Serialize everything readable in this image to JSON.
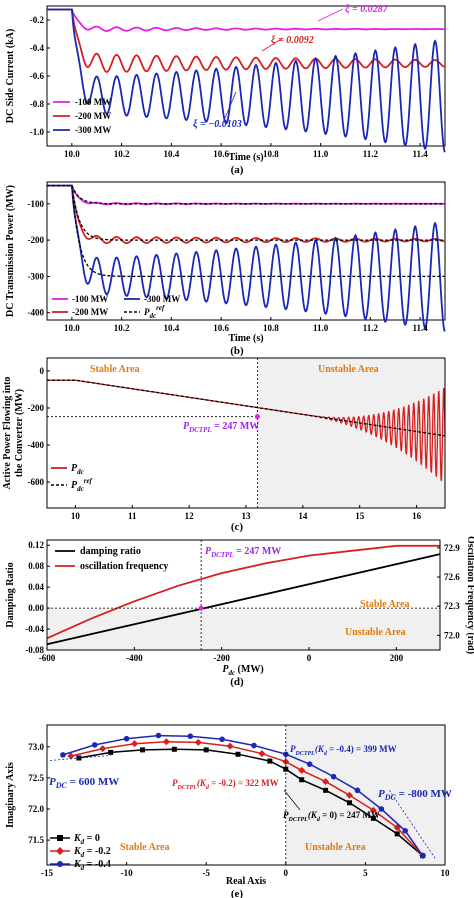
{
  "chart_data": [
    {
      "panel": "a",
      "type": "line",
      "caption": "(a)",
      "xlabel": "Time (s)",
      "ylabel": "DC Side Current (kA)",
      "xlim": [
        9.9,
        11.5
      ],
      "ylim": [
        -1.1,
        -0.1
      ],
      "xticks": [
        "10.0",
        "10.2",
        "10.4",
        "10.6",
        "10.8",
        "11.0",
        "11.2",
        "11.4"
      ],
      "yticks": [
        "-0.2",
        "-0.4",
        "-0.6",
        "-0.8",
        "-1.0"
      ],
      "legend_position": "bottom-left",
      "annotations": [
        "ξ = 0.0287",
        "ξ = 0.0092",
        "ξ = −0.0103"
      ],
      "series": [
        {
          "name": "-100 MW",
          "color": "#e61ee6",
          "t0": 10.0,
          "y0": -0.125,
          "y_final": -0.265,
          "osc_amplitude": 0.02,
          "osc_period": 0.08,
          "damping": 0.0287
        },
        {
          "name": "-200 MW",
          "color": "#d62020",
          "t0": 10.0,
          "y0": -0.125,
          "y_final": -0.51,
          "osc_amplitude": 0.07,
          "osc_period": 0.08,
          "damping": 0.0092
        },
        {
          "name": "-300 MW",
          "color": "#1a28b4",
          "t0": 10.0,
          "y0": -0.125,
          "y_final": -0.74,
          "osc_amplitude": 0.12,
          "osc_period": 0.08,
          "damping": -0.0103
        }
      ]
    },
    {
      "panel": "b",
      "type": "line",
      "caption": "(b)",
      "xlabel": "Time (s)",
      "ylabel": "DC Transmission Power (MW)",
      "xlim": [
        9.9,
        11.5
      ],
      "ylim": [
        -420,
        -40
      ],
      "xticks": [
        "10.0",
        "10.2",
        "10.4",
        "10.6",
        "10.8",
        "11.0",
        "11.2",
        "11.4"
      ],
      "yticks": [
        "-100",
        "-200",
        "-300",
        "-400"
      ],
      "legend_position": "bottom-left",
      "series": [
        {
          "name": "-100 MW",
          "color": "#e61ee6",
          "t0": 10.0,
          "y0": -50,
          "y_final": -100,
          "osc_amplitude": 3,
          "damping": 0.0287
        },
        {
          "name": "-200 MW",
          "color": "#d62020",
          "t0": 10.0,
          "y0": -50,
          "y_final": -200,
          "osc_amplitude": 10,
          "damping": 0.0092
        },
        {
          "name": "-300 MW",
          "color": "#1a28b4",
          "t0": 10.0,
          "y0": -50,
          "y_final": -300,
          "osc_amplitude": 45,
          "damping": -0.0103
        },
        {
          "name_main": "P",
          "name_sub": "dc",
          "name_sup": "ref",
          "color": "#000000",
          "dashed": true,
          "steps": [
            -50,
            -100,
            -200,
            -300
          ]
        }
      ]
    },
    {
      "panel": "c",
      "type": "line",
      "caption": "(c)",
      "ylabel_lines": [
        "Active Power Flowing into",
        "the Converter (MW)"
      ],
      "xlim": [
        9.5,
        16.5
      ],
      "ylim": [
        -740,
        70
      ],
      "xticks": [
        "10",
        "11",
        "12",
        "13",
        "14",
        "15",
        "16"
      ],
      "yticks": [
        "0",
        "-200",
        "-400",
        "-600"
      ],
      "area_labels": [
        "Stable Area",
        "Unstable Area"
      ],
      "unstable_region_start": 13.2,
      "threshold_annotation": {
        "main": "P",
        "sub": "DCTPL",
        "rest": " = 247 MW",
        "x": 13.2,
        "y": -247
      },
      "legend_position": "bottom-left",
      "series": [
        {
          "name_main": "P",
          "name_sub": "dc",
          "color": "#d62020",
          "ramp_from": [
            10.0,
            -50
          ],
          "ramp_to": [
            16.5,
            -350
          ],
          "osc_onset": 14.0,
          "osc_max_amplitude": 260
        },
        {
          "name_main": "P",
          "name_sub": "dc",
          "name_sup": "ref",
          "color": "#000000",
          "dashed": true,
          "from": [
            9.5,
            -50
          ],
          "ramp_start": 10.0,
          "to": [
            16.5,
            -350
          ]
        }
      ]
    },
    {
      "panel": "d",
      "type": "line",
      "caption": "(d)",
      "xlabel_main": "P",
      "xlabel_sub": "dc",
      "xlabel_rest": " (MW)",
      "ylabel": "Damping Ratio",
      "ylabel_right": "Oscillation Frequency (rad)",
      "xlim": [
        -600,
        300
      ],
      "ylim": [
        -0.08,
        0.13
      ],
      "ylim_right": [
        71.85,
        72.98
      ],
      "xticks": [
        "-600",
        "-400",
        "-200",
        "0",
        "200"
      ],
      "yticks": [
        "0.12",
        "0.08",
        "0.04",
        "0.00",
        "-0.04",
        "-0.08"
      ],
      "yticks_right": [
        "72.9",
        "72.6",
        "72.3",
        "72.0"
      ],
      "area_labels": [
        "Stable Area",
        "Unstable Area"
      ],
      "threshold_annotation": {
        "main": "P",
        "sub": "DCTPL",
        "rest": " = 247 MW",
        "x": -247,
        "y": 0
      },
      "legend_position": "top-left",
      "series": [
        {
          "name": "damping ratio",
          "color": "#000000",
          "x": [
            -600,
            300
          ],
          "y": [
            -0.069,
            0.103
          ]
        },
        {
          "name": "oscillation frequency",
          "color": "#d62020",
          "axis": "right",
          "x": [
            -600,
            -500,
            -400,
            -300,
            -200,
            -100,
            0,
            100,
            200,
            300
          ],
          "y": [
            71.97,
            72.17,
            72.35,
            72.51,
            72.64,
            72.74,
            72.82,
            72.87,
            72.92,
            72.92
          ]
        }
      ]
    },
    {
      "panel": "e",
      "type": "scatter",
      "caption": "(e)",
      "xlabel": "Real Axis",
      "ylabel": "Imaginary Axis",
      "xlim": [
        -15,
        10
      ],
      "ylim": [
        71.1,
        73.35
      ],
      "xticks": [
        "-15",
        "-10",
        "-5",
        "0",
        "5",
        "10"
      ],
      "yticks": [
        "73.0",
        "72.5",
        "72.0",
        "71.5"
      ],
      "area_labels": [
        "Stable Area",
        "Unstable Area"
      ],
      "annotation_main": "P",
      "annotation_sub": "DC",
      "annotations_start": " = 600 MW",
      "annotations_end": " = -800 MW",
      "annotations_threshold": [
        {
          "main": "P",
          "sub": "DCTPL",
          "paren": "(K",
          "psub": "d",
          "rest": " = -0.4) = 399 MW",
          "color": "#1a28b4"
        },
        {
          "main": "P",
          "sub": "DCTPL",
          "paren": "(K",
          "psub": "d",
          "rest": " = -0.2) = 322 MW",
          "color": "#d62020"
        },
        {
          "main": "P",
          "sub": "DCTPL",
          "paren": "(K",
          "psub": "d",
          "rest": " = 0) = 247 MW",
          "color": "#000000"
        }
      ],
      "legend_position": "bottom-left",
      "series": [
        {
          "name_main": "K",
          "name_sub": "d",
          "name_rest": " = 0",
          "color": "#000000",
          "marker": "square",
          "x": [
            -13,
            -11,
            -9,
            -7,
            -5,
            -3,
            -1,
            0,
            1,
            2.5,
            4,
            5.5,
            7,
            8.6
          ],
          "y": [
            72.82,
            72.91,
            72.95,
            72.96,
            72.95,
            72.88,
            72.77,
            72.64,
            72.47,
            72.3,
            72.1,
            71.85,
            71.6,
            71.25
          ]
        },
        {
          "name_main": "K",
          "name_sub": "d",
          "name_rest": " = -0.2",
          "color": "#d62020",
          "marker": "diamond",
          "x": [
            -13.5,
            -11.5,
            -9.5,
            -7.5,
            -5.5,
            -3.5,
            -1.5,
            0,
            1,
            2.5,
            4,
            5.5,
            7,
            8.6
          ],
          "y": [
            72.85,
            72.97,
            73.05,
            73.08,
            73.07,
            73.01,
            72.89,
            72.76,
            72.62,
            72.44,
            72.22,
            71.98,
            71.7,
            71.25
          ]
        },
        {
          "name_main": "K",
          "name_sub": "d",
          "name_rest": " = -0.4",
          "color": "#1a28b4",
          "marker": "circle",
          "x": [
            -14,
            -12,
            -10,
            -8,
            -6,
            -4,
            -2,
            0,
            1.5,
            3,
            4.5,
            6,
            7.5,
            8.6
          ],
          "y": [
            72.87,
            73.03,
            73.13,
            73.18,
            73.17,
            73.12,
            73.02,
            72.88,
            72.72,
            72.52,
            72.3,
            72.0,
            71.65,
            71.25
          ]
        }
      ]
    }
  ]
}
